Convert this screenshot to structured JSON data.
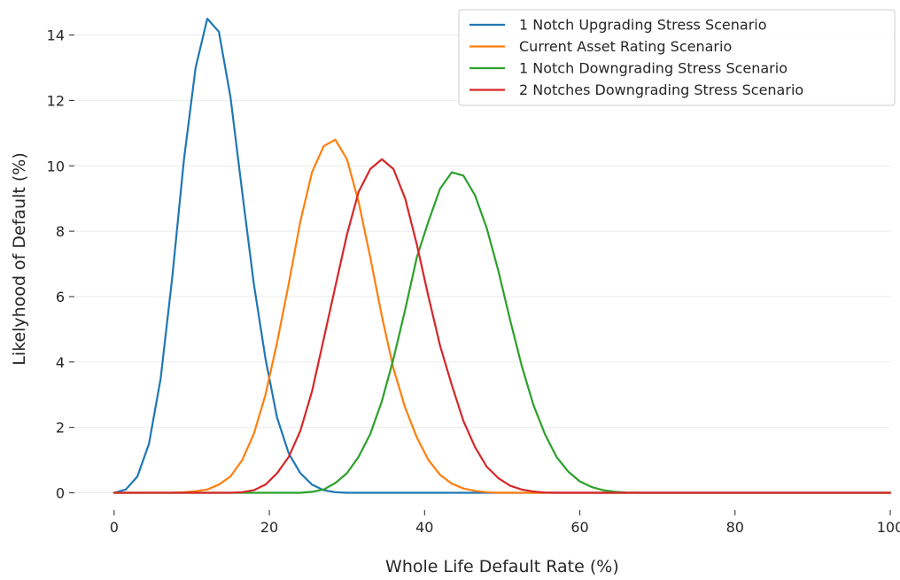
{
  "chart_data": {
    "type": "line",
    "xlabel": "Whole Life Default Rate (%)",
    "ylabel": "Likelyhood of Default (%)",
    "xlim": [
      -5,
      100
    ],
    "ylim": [
      -0.5,
      14.8
    ],
    "x_ticks": [
      0,
      20,
      40,
      60,
      80,
      100
    ],
    "y_ticks": [
      0,
      2,
      4,
      6,
      8,
      10,
      12,
      14
    ],
    "grid": "horizontal",
    "legend_position": "top-right",
    "colors": {
      "upgrade_1": "#1f77b4",
      "current": "#ff7f0e",
      "downgrade_1": "#2ca02c",
      "downgrade_2": "#d62728"
    },
    "x": [
      0,
      1.5,
      3,
      4.5,
      6,
      7.5,
      9,
      10.5,
      12,
      13.5,
      15,
      16.5,
      18,
      19.5,
      21,
      22.5,
      24,
      25.5,
      27,
      28.5,
      30,
      31.5,
      33,
      34.5,
      36,
      37.5,
      39,
      40.5,
      42,
      43.5,
      45,
      46.5,
      48,
      49.5,
      51,
      52.5,
      54,
      55.5,
      57,
      58.5,
      60,
      61.5,
      63,
      64.5,
      66,
      67.5,
      69,
      70.5,
      72,
      73.5,
      75,
      76.5,
      78,
      79.5,
      81,
      82.5,
      84,
      85.5,
      87,
      88.5,
      90,
      91.5,
      93,
      94.5,
      96,
      97.5,
      100
    ],
    "series": [
      {
        "name": "1 Notch Upgrading Stress Scenario",
        "color_key": "upgrade_1",
        "values": [
          0.0,
          0.1,
          0.5,
          1.5,
          3.5,
          6.6,
          10.2,
          13.0,
          14.5,
          14.1,
          12.1,
          9.2,
          6.4,
          4.1,
          2.3,
          1.2,
          0.6,
          0.25,
          0.08,
          0.02,
          0.0,
          0.0,
          0.0,
          0.0,
          0.0,
          0.0,
          0.0,
          0.0,
          0.0,
          0.0,
          0.0,
          0.0,
          0.0,
          0.0,
          0.0,
          0.0,
          0.0,
          0.0,
          0.0,
          0.0,
          0.0,
          0.0,
          0.0,
          0.0,
          0.0,
          0.0,
          0.0,
          0.0,
          0.0,
          0.0,
          0.0,
          0.0,
          0.0,
          0.0,
          0.0,
          0.0,
          0.0,
          0.0,
          0.0,
          0.0,
          0.0,
          0.0,
          0.0,
          0.0,
          0.0,
          0.0,
          0.0
        ]
      },
      {
        "name": "Current Asset Rating Scenario",
        "color_key": "current",
        "values": [
          0.0,
          0.0,
          0.0,
          0.0,
          0.0,
          0.0,
          0.02,
          0.05,
          0.1,
          0.25,
          0.5,
          1.0,
          1.8,
          3.0,
          4.6,
          6.4,
          8.3,
          9.8,
          10.6,
          10.8,
          10.2,
          8.9,
          7.2,
          5.4,
          3.8,
          2.6,
          1.7,
          1.0,
          0.55,
          0.28,
          0.13,
          0.06,
          0.02,
          0.0,
          0.0,
          0.0,
          0.0,
          0.0,
          0.0,
          0.0,
          0.0,
          0.0,
          0.0,
          0.0,
          0.0,
          0.0,
          0.0,
          0.0,
          0.0,
          0.0,
          0.0,
          0.0,
          0.0,
          0.0,
          0.0,
          0.0,
          0.0,
          0.0,
          0.0,
          0.0,
          0.0,
          0.0,
          0.0,
          0.0,
          0.0,
          0.0,
          0.0
        ]
      },
      {
        "name": "1 Notch Downgrading Stress Scenario",
        "color_key": "downgrade_1",
        "values": [
          0.0,
          0.0,
          0.0,
          0.0,
          0.0,
          0.0,
          0.0,
          0.0,
          0.0,
          0.0,
          0.0,
          0.0,
          0.0,
          0.0,
          0.0,
          0.0,
          0.0,
          0.03,
          0.1,
          0.3,
          0.6,
          1.1,
          1.8,
          2.8,
          4.1,
          5.6,
          7.2,
          8.3,
          9.3,
          9.8,
          9.7,
          9.1,
          8.1,
          6.8,
          5.3,
          3.9,
          2.7,
          1.8,
          1.1,
          0.65,
          0.35,
          0.18,
          0.08,
          0.03,
          0.01,
          0.0,
          0.0,
          0.0,
          0.0,
          0.0,
          0.0,
          0.0,
          0.0,
          0.0,
          0.0,
          0.0,
          0.0,
          0.0,
          0.0,
          0.0,
          0.0,
          0.0,
          0.0,
          0.0,
          0.0,
          0.0,
          0.0
        ]
      },
      {
        "name": "2 Notches Downgrading Stress Scenario",
        "color_key": "downgrade_2",
        "values": [
          0.0,
          0.0,
          0.0,
          0.0,
          0.0,
          0.0,
          0.0,
          0.0,
          0.0,
          0.0,
          0.0,
          0.02,
          0.08,
          0.25,
          0.6,
          1.1,
          1.9,
          3.1,
          4.7,
          6.3,
          7.9,
          9.2,
          9.9,
          10.2,
          9.9,
          9.0,
          7.6,
          6.0,
          4.5,
          3.3,
          2.2,
          1.4,
          0.8,
          0.45,
          0.22,
          0.1,
          0.04,
          0.01,
          0.0,
          0.0,
          0.0,
          0.0,
          0.0,
          0.0,
          0.0,
          0.0,
          0.0,
          0.0,
          0.0,
          0.0,
          0.0,
          0.0,
          0.0,
          0.0,
          0.0,
          0.0,
          0.0,
          0.0,
          0.0,
          0.0,
          0.0,
          0.0,
          0.0,
          0.0,
          0.0,
          0.0,
          0.0
        ]
      }
    ]
  }
}
